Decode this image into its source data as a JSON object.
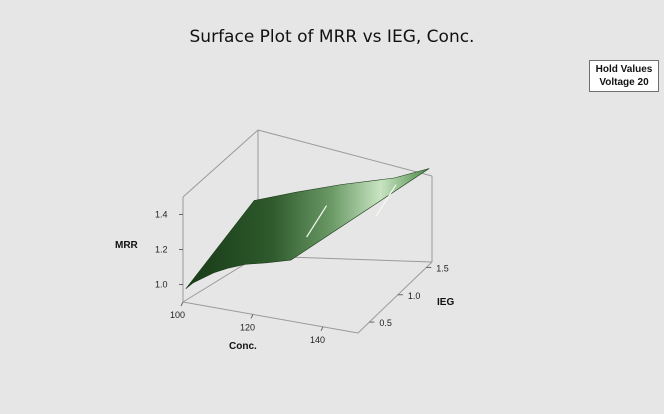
{
  "chart_data": {
    "type": "surface",
    "title": "Surface Plot of MRR vs IEG, Conc.",
    "zlabel": "MRR",
    "xlabel": "Conc.",
    "ylabel": "IEG",
    "zlim": [
      0.9,
      1.5
    ],
    "xlim": [
      100,
      150
    ],
    "ylim": [
      0.3,
      1.6
    ],
    "z_ticks": [
      "1.0",
      "1.2",
      "1.4"
    ],
    "x_ticks": [
      "100",
      "120",
      "140"
    ],
    "y_ticks": [
      "0.5",
      "1.0",
      "1.5"
    ],
    "hold_values": {
      "header": "Hold Values",
      "items": [
        {
          "name": "Voltage",
          "value": "20"
        }
      ]
    },
    "surface_edges": {
      "conc_low_edge": {
        "conc": [
          100,
          102,
          105,
          108,
          112,
          117,
          123,
          130
        ],
        "ieg": [
          0.35,
          0.35,
          0.35,
          0.35,
          0.35,
          0.35,
          0.35,
          0.35
        ],
        "mrr": [
          0.96,
          1.0,
          1.04,
          1.08,
          1.12,
          1.16,
          1.19,
          1.23
        ]
      },
      "ieg_high_edge": {
        "conc": [
          100,
          112,
          125,
          140,
          150
        ],
        "ieg": [
          1.55,
          1.55,
          1.55,
          1.55,
          1.55
        ],
        "mrr": [
          1.09,
          1.18,
          1.27,
          1.36,
          1.45
        ]
      }
    },
    "colors": {
      "surface_dark": "#1f4a1f",
      "surface_light": "#d6ecd2",
      "background": "#e6e6e6"
    }
  }
}
